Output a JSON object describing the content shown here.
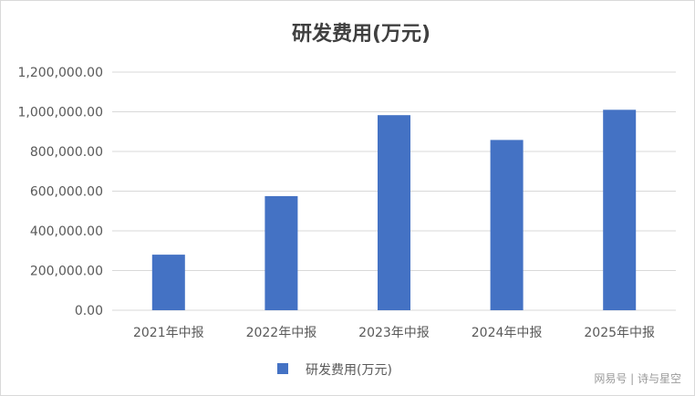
{
  "chart_data": {
    "type": "bar",
    "title": "研发费用(万元)",
    "categories": [
      "2021年中报",
      "2022年中报",
      "2023年中报",
      "2024年中报",
      "2025年中报"
    ],
    "series": [
      {
        "name": "研发费用(万元)",
        "color": "#4472C4",
        "values": [
          280000,
          575000,
          983000,
          858000,
          1010000
        ]
      }
    ],
    "y_ticks": [
      "0.00",
      "200,000.00",
      "400,000.00",
      "600,000.00",
      "800,000.00",
      "1,000,000.00",
      "1,200,000.00"
    ],
    "ylim": [
      0,
      1200000
    ],
    "grid": true,
    "legend_position": "bottom"
  },
  "watermark": "网易号 | 诗与星空"
}
